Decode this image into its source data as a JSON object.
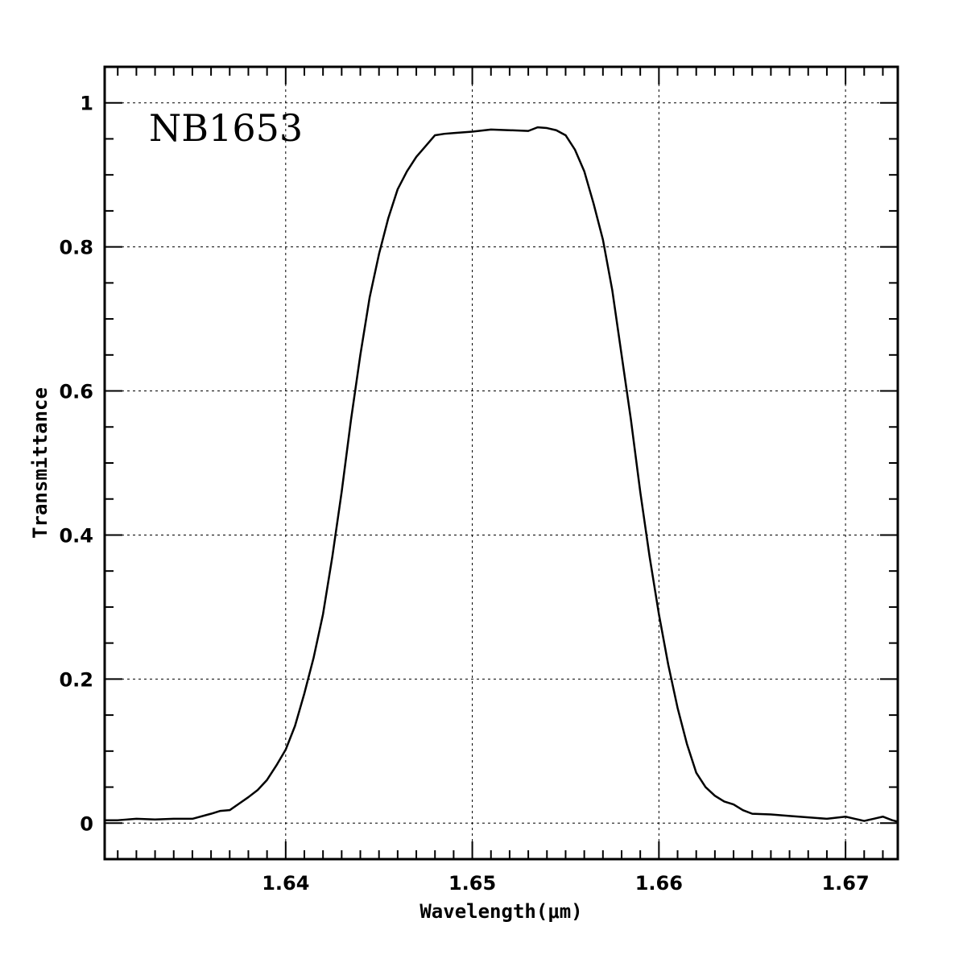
{
  "chart_data": {
    "type": "line",
    "title": "",
    "annotation": "NB1653",
    "xlabel": "Wavelength(μm)",
    "ylabel": "Transmittance",
    "xlim": [
      1.6303,
      1.6728
    ],
    "ylim": [
      -0.05,
      1.05
    ],
    "grid": true,
    "x_ticks": [
      1.64,
      1.65,
      1.66,
      1.67
    ],
    "x_tick_labels": [
      "1.64",
      "1.65",
      "1.66",
      "1.67"
    ],
    "y_ticks": [
      0,
      0.2,
      0.4,
      0.6,
      0.8,
      1.0
    ],
    "y_tick_labels": [
      "0",
      "0.2",
      "0.4",
      "0.6",
      "0.8",
      "1"
    ],
    "x_minor_step": 0.001,
    "y_minor_step": 0.05,
    "series": [
      {
        "color": "#000000",
        "x": [
          1.6303,
          1.631,
          1.632,
          1.633,
          1.634,
          1.635,
          1.636,
          1.6365,
          1.637,
          1.6375,
          1.638,
          1.6385,
          1.639,
          1.6395,
          1.64,
          1.6405,
          1.641,
          1.6415,
          1.642,
          1.6425,
          1.643,
          1.6435,
          1.644,
          1.6445,
          1.645,
          1.6455,
          1.646,
          1.6465,
          1.647,
          1.6475,
          1.648,
          1.6485,
          1.649,
          1.65,
          1.651,
          1.652,
          1.653,
          1.6535,
          1.654,
          1.6545,
          1.655,
          1.6555,
          1.656,
          1.6565,
          1.657,
          1.6575,
          1.658,
          1.6585,
          1.659,
          1.6595,
          1.66,
          1.6605,
          1.661,
          1.6615,
          1.662,
          1.6625,
          1.663,
          1.6635,
          1.664,
          1.6645,
          1.665,
          1.666,
          1.667,
          1.668,
          1.669,
          1.67,
          1.6705,
          1.671,
          1.6715,
          1.672,
          1.6725,
          1.6728
        ],
        "y": [
          0.004,
          0.004,
          0.006,
          0.005,
          0.006,
          0.006,
          0.013,
          0.017,
          0.018,
          0.027,
          0.036,
          0.046,
          0.06,
          0.08,
          0.102,
          0.135,
          0.18,
          0.23,
          0.29,
          0.37,
          0.46,
          0.56,
          0.65,
          0.73,
          0.79,
          0.84,
          0.88,
          0.905,
          0.925,
          0.94,
          0.955,
          0.957,
          0.958,
          0.96,
          0.963,
          0.962,
          0.961,
          0.966,
          0.965,
          0.962,
          0.955,
          0.935,
          0.905,
          0.86,
          0.81,
          0.74,
          0.65,
          0.56,
          0.46,
          0.37,
          0.29,
          0.22,
          0.16,
          0.11,
          0.07,
          0.05,
          0.038,
          0.03,
          0.026,
          0.018,
          0.013,
          0.012,
          0.01,
          0.008,
          0.006,
          0.009,
          0.006,
          0.003,
          0.006,
          0.009,
          0.004,
          0.002
        ]
      }
    ]
  }
}
